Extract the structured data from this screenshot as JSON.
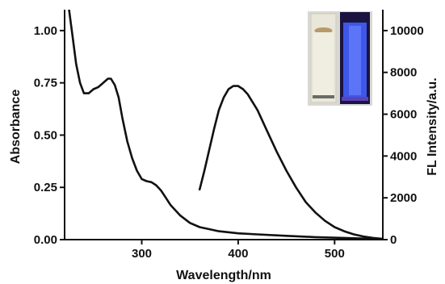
{
  "chart_data": {
    "type": "line",
    "xlabel": "Wavelength/nm",
    "ylabel_left": "Absorbance",
    "ylabel_right": "FL Intensity/a.u.",
    "xlim": [
      220,
      550
    ],
    "ylim_left": [
      0,
      1.1
    ],
    "ylim_right": [
      0,
      11000
    ],
    "x_ticks": [
      300,
      400,
      500
    ],
    "x_tick_labels": [
      "300",
      "400",
      "500"
    ],
    "y_left_ticks": [
      0,
      0.25,
      0.5,
      0.75,
      1.0
    ],
    "y_left_tick_labels": [
      "0.00",
      "0.25",
      "0.50",
      "0.75",
      "1.00"
    ],
    "y_right_ticks": [
      0,
      2000,
      4000,
      6000,
      8000,
      10000
    ],
    "y_right_tick_labels": [
      "0",
      "2000",
      "4000",
      "6000",
      "8000",
      "10000"
    ],
    "series": [
      {
        "axis": "left",
        "color": "#111111",
        "x": [
          224,
          228,
          232,
          236,
          240,
          245,
          250,
          255,
          260,
          265,
          268,
          272,
          276,
          280,
          285,
          290,
          295,
          300,
          305,
          310,
          315,
          320,
          325,
          330,
          340,
          350,
          360,
          380,
          400,
          420,
          450,
          480,
          510,
          540,
          550
        ],
        "y": [
          1.12,
          0.98,
          0.84,
          0.75,
          0.7,
          0.7,
          0.72,
          0.73,
          0.75,
          0.77,
          0.77,
          0.74,
          0.68,
          0.58,
          0.47,
          0.39,
          0.33,
          0.29,
          0.28,
          0.275,
          0.26,
          0.235,
          0.2,
          0.165,
          0.115,
          0.08,
          0.06,
          0.04,
          0.03,
          0.025,
          0.018,
          0.012,
          0.008,
          0.004,
          0.002
        ]
      },
      {
        "axis": "right",
        "color": "#111111",
        "x": [
          360,
          365,
          370,
          375,
          380,
          385,
          390,
          395,
          400,
          405,
          410,
          420,
          430,
          440,
          450,
          460,
          470,
          480,
          490,
          500,
          510,
          520,
          530,
          540,
          550
        ],
        "y": [
          2400,
          3300,
          4300,
          5300,
          6200,
          6800,
          7200,
          7350,
          7350,
          7200,
          6950,
          6200,
          5200,
          4200,
          3300,
          2500,
          1800,
          1300,
          900,
          600,
          400,
          250,
          150,
          80,
          40
        ]
      }
    ]
  }
}
